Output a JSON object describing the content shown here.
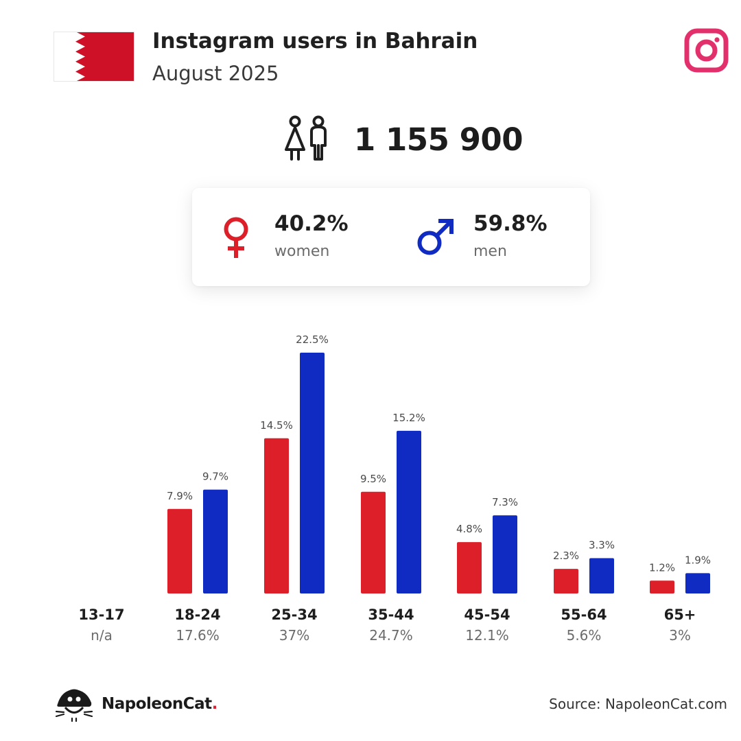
{
  "header": {
    "title": "Instagram users in Bahrain",
    "subtitle": "August 2025",
    "flag_icon": "bahrain-flag",
    "platform_icon": "instagram-icon"
  },
  "total": {
    "icon": "people-icon",
    "value": "1 155 900"
  },
  "gender": {
    "women": {
      "pct": "40.2%",
      "label": "women",
      "icon": "female-symbol-icon"
    },
    "men": {
      "pct": "59.8%",
      "label": "men",
      "icon": "male-symbol-icon"
    }
  },
  "colors": {
    "women": "#dc1f28",
    "men": "#0f2bc2",
    "flag_red": "#ce1126",
    "instagram": "#e1306c"
  },
  "age_groups": [
    {
      "name": "13-17",
      "share": "n/a"
    },
    {
      "name": "18-24",
      "share": "17.6%"
    },
    {
      "name": "25-34",
      "share": "37%"
    },
    {
      "name": "35-44",
      "share": "24.7%"
    },
    {
      "name": "45-54",
      "share": "12.1%"
    },
    {
      "name": "55-64",
      "share": "5.6%"
    },
    {
      "name": "65+",
      "share": "3%"
    }
  ],
  "chart_data": {
    "type": "bar",
    "categories": [
      "13-17",
      "18-24",
      "25-34",
      "35-44",
      "45-54",
      "55-64",
      "65+"
    ],
    "series": [
      {
        "key": "women",
        "values": [
          null,
          7.9,
          14.5,
          9.5,
          4.8,
          2.3,
          1.2
        ],
        "labels": [
          "",
          "7.9%",
          "14.5%",
          "9.5%",
          "4.8%",
          "2.3%",
          "1.2%"
        ]
      },
      {
        "key": "men",
        "values": [
          null,
          9.7,
          22.5,
          15.2,
          7.3,
          3.3,
          1.9
        ],
        "labels": [
          "",
          "9.7%",
          "22.5%",
          "15.2%",
          "7.3%",
          "3.3%",
          "1.9%"
        ]
      }
    ],
    "unit": "%",
    "ylim": [
      0,
      22.5
    ],
    "grid": false,
    "legend": "none"
  },
  "footer": {
    "brand": "NapoleonCat",
    "brand_dot": ".",
    "brand_icon": "napoleoncat-logo-icon",
    "source": "Source: NapoleonCat.com"
  }
}
